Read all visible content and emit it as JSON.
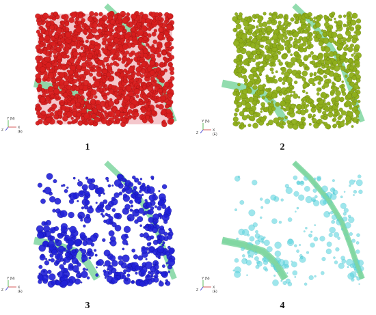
{
  "panels": [
    {
      "label": "1",
      "particle_color": "#d81e1e",
      "edge_color": "#8a1010",
      "style": "dense"
    },
    {
      "label": "2",
      "particle_color": "#8fae1a",
      "edge_color": "#5e7510",
      "style": "medium"
    },
    {
      "label": "3",
      "particle_color": "#2020d8",
      "edge_color": "#0c0c80",
      "style": "sparse-center"
    },
    {
      "label": "4",
      "particle_color": "#5fd6e0",
      "edge_color": "#2aa8b8",
      "style": "sparse-cyan"
    }
  ],
  "axes": {
    "y_label": "Y (N)",
    "x_label": "X (E)",
    "z_label": "Z"
  },
  "river_color": "#7fd6a0"
}
